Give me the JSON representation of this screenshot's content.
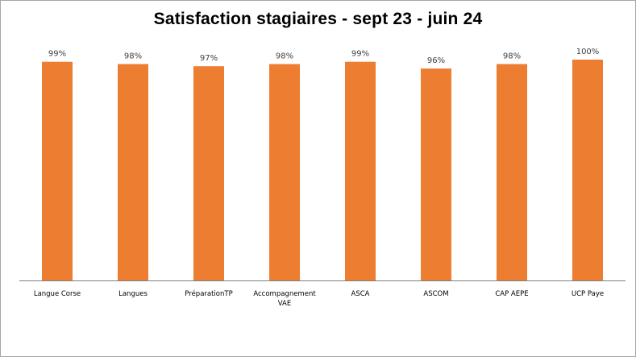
{
  "chart_data": {
    "type": "bar",
    "title": "Satisfaction stagiaires - sept 23 - juin 24",
    "xlabel": "",
    "ylabel": "",
    "categories": [
      "Langue Corse",
      "Langues",
      "PréparationTP",
      "Accompagnement VAE",
      "ASCA",
      "ASCOM",
      "CAP AEPE",
      "UCP Paye"
    ],
    "category_lines": [
      [
        "Langue Corse"
      ],
      [
        "Langues"
      ],
      [
        "PréparationTP"
      ],
      [
        "Accompagnement",
        "VAE"
      ],
      [
        "ASCA"
      ],
      [
        "ASCOM"
      ],
      [
        "CAP AEPE"
      ],
      [
        "UCP Paye"
      ]
    ],
    "values": [
      99,
      98,
      97,
      98,
      99,
      96,
      98,
      100
    ],
    "data_labels": [
      "99%",
      "98%",
      "97%",
      "98%",
      "99%",
      "96%",
      "98%",
      "100%"
    ],
    "unit": "%",
    "ylim": [
      0,
      100
    ],
    "grid": false,
    "legend": "none",
    "bar_color": "#ed7d31",
    "axis_color": "#7f7f7f"
  }
}
